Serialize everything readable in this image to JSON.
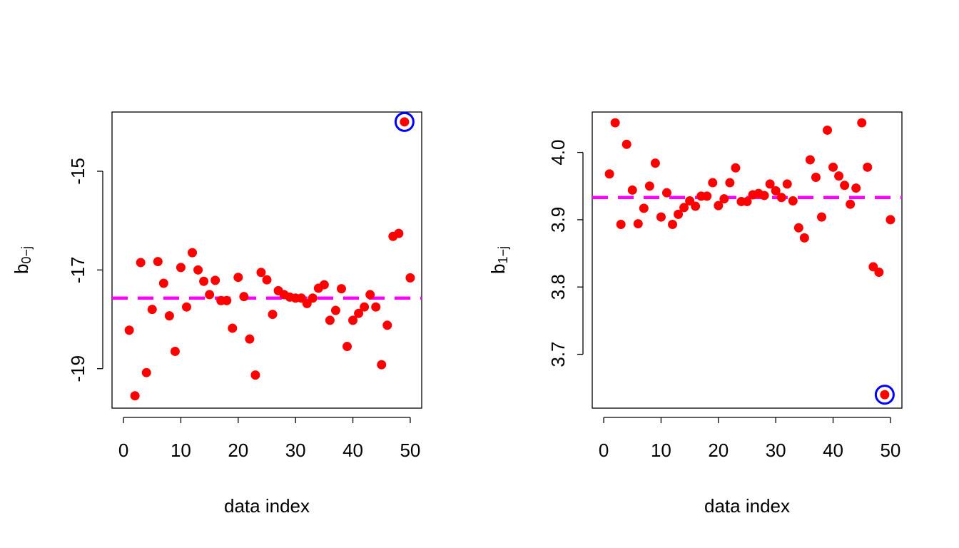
{
  "colors": {
    "point": "#ff0000",
    "mean_line": "#ff00ff",
    "highlight": "#0000ff",
    "axis": "#000000",
    "background": "#ffffff"
  },
  "chart_data": [
    {
      "type": "scatter",
      "xlabel": "data index",
      "ylabel_base": "b",
      "ylabel_sub": "0−j",
      "xlim": [
        0,
        50
      ],
      "ylim": [
        -19.8,
        -13.8
      ],
      "x_ticks": [
        0,
        10,
        20,
        30,
        40,
        50
      ],
      "x_tick_labels": [
        "0",
        "10",
        "20",
        "30",
        "40",
        "50"
      ],
      "y_ticks": [
        -19,
        -17,
        -15
      ],
      "y_tick_labels": [
        "-19",
        "-17",
        "-15"
      ],
      "mean_line_y": -17.57,
      "highlight_index": 49,
      "x": [
        1,
        2,
        3,
        4,
        5,
        6,
        7,
        8,
        9,
        10,
        11,
        12,
        13,
        14,
        15,
        16,
        17,
        18,
        19,
        20,
        21,
        22,
        23,
        24,
        25,
        26,
        27,
        28,
        29,
        30,
        31,
        32,
        33,
        34,
        35,
        36,
        37,
        38,
        39,
        40,
        41,
        42,
        43,
        44,
        45,
        46,
        47,
        48,
        49,
        50
      ],
      "y": [
        -18.22,
        -19.55,
        -16.85,
        -19.08,
        -17.8,
        -16.83,
        -17.27,
        -17.93,
        -18.65,
        -16.95,
        -17.75,
        -16.65,
        -17.0,
        -17.23,
        -17.5,
        -17.21,
        -17.62,
        -17.62,
        -18.18,
        -17.15,
        -17.54,
        -18.4,
        -19.13,
        -17.05,
        -17.2,
        -17.9,
        -17.42,
        -17.5,
        -17.55,
        -17.57,
        -17.57,
        -17.68,
        -17.57,
        -17.37,
        -17.3,
        -18.02,
        -17.82,
        -17.38,
        -18.55,
        -18.02,
        -17.88,
        -17.75,
        -17.5,
        -17.75,
        -18.92,
        -18.12,
        -16.32,
        -16.26,
        -14.0,
        -17.16
      ]
    },
    {
      "type": "scatter",
      "xlabel": "data index",
      "ylabel_base": "b",
      "ylabel_sub": "1−j",
      "xlim": [
        0,
        50
      ],
      "ylim": [
        3.62,
        4.06
      ],
      "x_ticks": [
        0,
        10,
        20,
        30,
        40,
        50
      ],
      "x_tick_labels": [
        "0",
        "10",
        "20",
        "30",
        "40",
        "50"
      ],
      "y_ticks": [
        3.7,
        3.8,
        3.9,
        4.0
      ],
      "y_tick_labels": [
        "3.7",
        "3.8",
        "3.9",
        "4.0"
      ],
      "mean_line_y": 3.933,
      "highlight_index": 49,
      "x": [
        1,
        2,
        3,
        4,
        5,
        6,
        7,
        8,
        9,
        10,
        11,
        12,
        13,
        14,
        15,
        16,
        17,
        18,
        19,
        20,
        21,
        22,
        23,
        24,
        25,
        26,
        27,
        28,
        29,
        30,
        31,
        32,
        33,
        34,
        35,
        36,
        37,
        38,
        39,
        40,
        41,
        42,
        43,
        44,
        45,
        46,
        47,
        48,
        49,
        50
      ],
      "y": [
        3.968,
        4.044,
        3.893,
        4.012,
        3.944,
        3.894,
        3.917,
        3.95,
        3.984,
        3.904,
        3.94,
        3.893,
        3.908,
        3.918,
        3.928,
        3.92,
        3.935,
        3.935,
        3.955,
        3.921,
        3.931,
        3.955,
        3.977,
        3.927,
        3.927,
        3.937,
        3.939,
        3.936,
        3.953,
        3.943,
        3.933,
        3.953,
        3.928,
        3.888,
        3.873,
        3.989,
        3.963,
        3.904,
        4.033,
        3.978,
        3.965,
        3.951,
        3.923,
        3.947,
        4.044,
        3.978,
        3.83,
        3.822,
        3.64,
        3.9
      ]
    }
  ]
}
